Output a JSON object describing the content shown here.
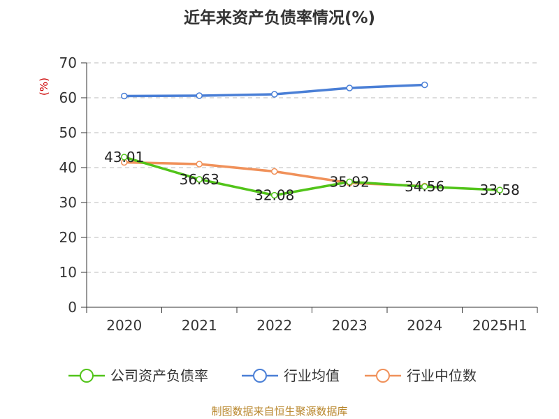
{
  "title": "近年来资产负债率情况(%)",
  "footer": "制图数据来自恒生聚源数据库",
  "colors": {
    "company": "#52c41a",
    "avg": "#4a7fd6",
    "median": "#f0915a",
    "grid": "#bbbbbb",
    "axis": "#333333",
    "ylabel": "#cc0000"
  },
  "chart_data": {
    "type": "line",
    "ylabel": "(%)",
    "ylim": [
      0,
      70
    ],
    "yticks": [
      0,
      10,
      20,
      30,
      40,
      50,
      60,
      70
    ],
    "grid": true,
    "legend_position": "bottom",
    "categories": [
      "2020",
      "2021",
      "2022",
      "2023",
      "2024",
      "2025H1"
    ],
    "series": [
      {
        "name": "公司资产负债率",
        "color": "company",
        "values": [
          43.01,
          36.63,
          32.08,
          35.92,
          34.56,
          33.58
        ],
        "labels": [
          "43.01",
          "36.63",
          "32.08",
          "35.92",
          "34.56",
          "33.58"
        ]
      },
      {
        "name": "行业均值",
        "color": "avg",
        "values": [
          60.5,
          60.6,
          61.0,
          62.8,
          63.7,
          null
        ]
      },
      {
        "name": "行业中位数",
        "color": "median",
        "values": [
          41.5,
          41.0,
          38.9,
          35.6,
          34.7,
          null
        ]
      }
    ]
  }
}
